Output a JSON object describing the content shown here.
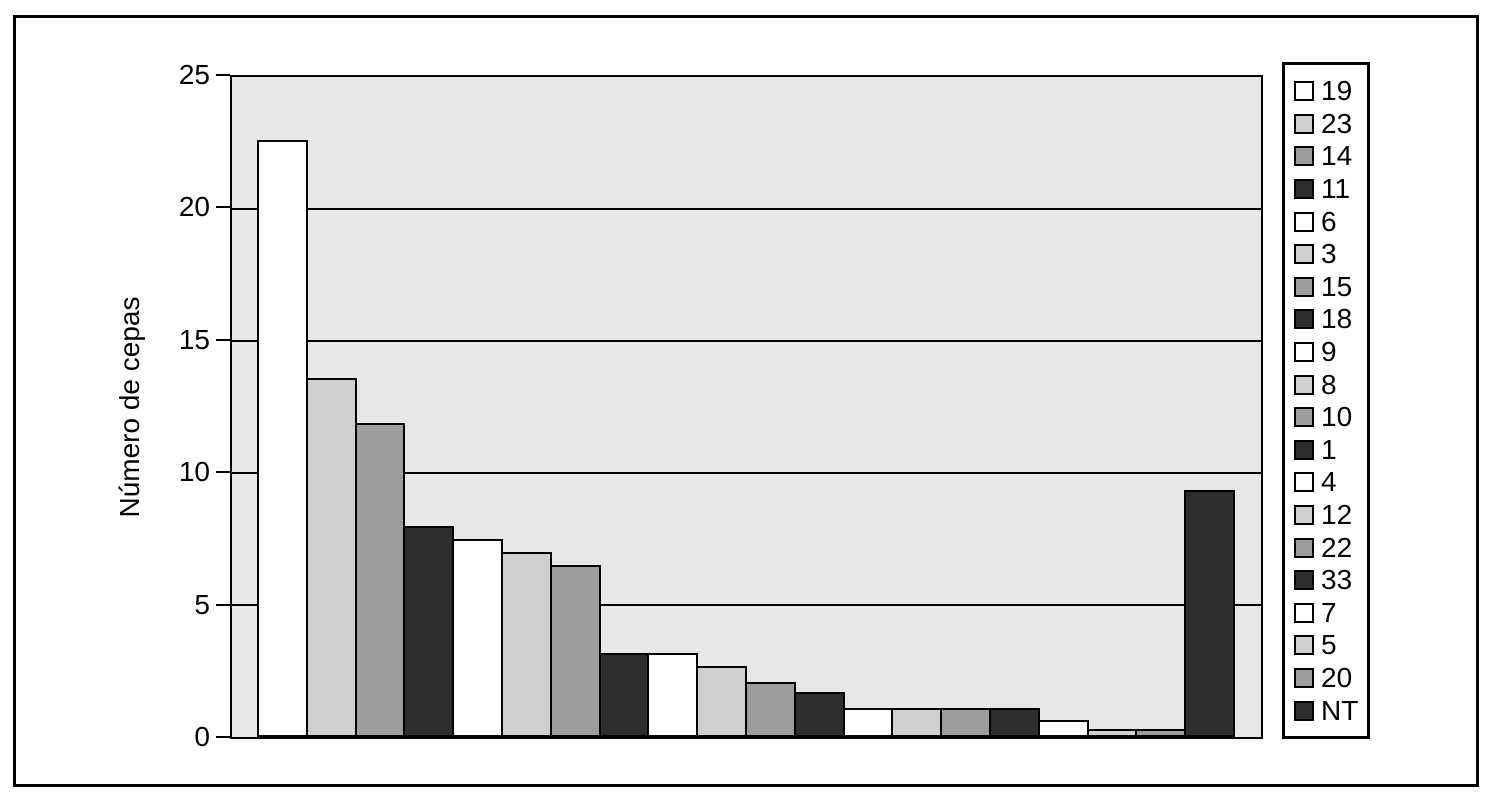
{
  "chart_data": {
    "type": "bar",
    "title": "",
    "xlabel": "",
    "ylabel": "Número de cepas",
    "ylim": [
      0,
      25
    ],
    "yticks": [
      0,
      5,
      10,
      15,
      20,
      25
    ],
    "grid": true,
    "legend_position": "right",
    "categories": [
      "19",
      "23",
      "14",
      "11",
      "6",
      "3",
      "15",
      "18",
      "9",
      "8",
      "10",
      "1",
      "4",
      "12",
      "22",
      "33",
      "7",
      "5",
      "20",
      "NT"
    ],
    "values": [
      22.6,
      13.6,
      11.9,
      8.0,
      7.5,
      7.0,
      6.5,
      3.2,
      3.2,
      2.7,
      2.1,
      1.7,
      1.1,
      1.1,
      1.1,
      1.1,
      0.65,
      0.3,
      0.3,
      9.35
    ],
    "bar_color_cycle": [
      "#ffffff",
      "#cfcfcf",
      "#9d9d9d",
      "#2e2e2e"
    ],
    "colors": {
      "plot_background": "#e7e7e7",
      "axis": "#000000",
      "frame": "#000000",
      "page_background": "#ffffff"
    }
  }
}
